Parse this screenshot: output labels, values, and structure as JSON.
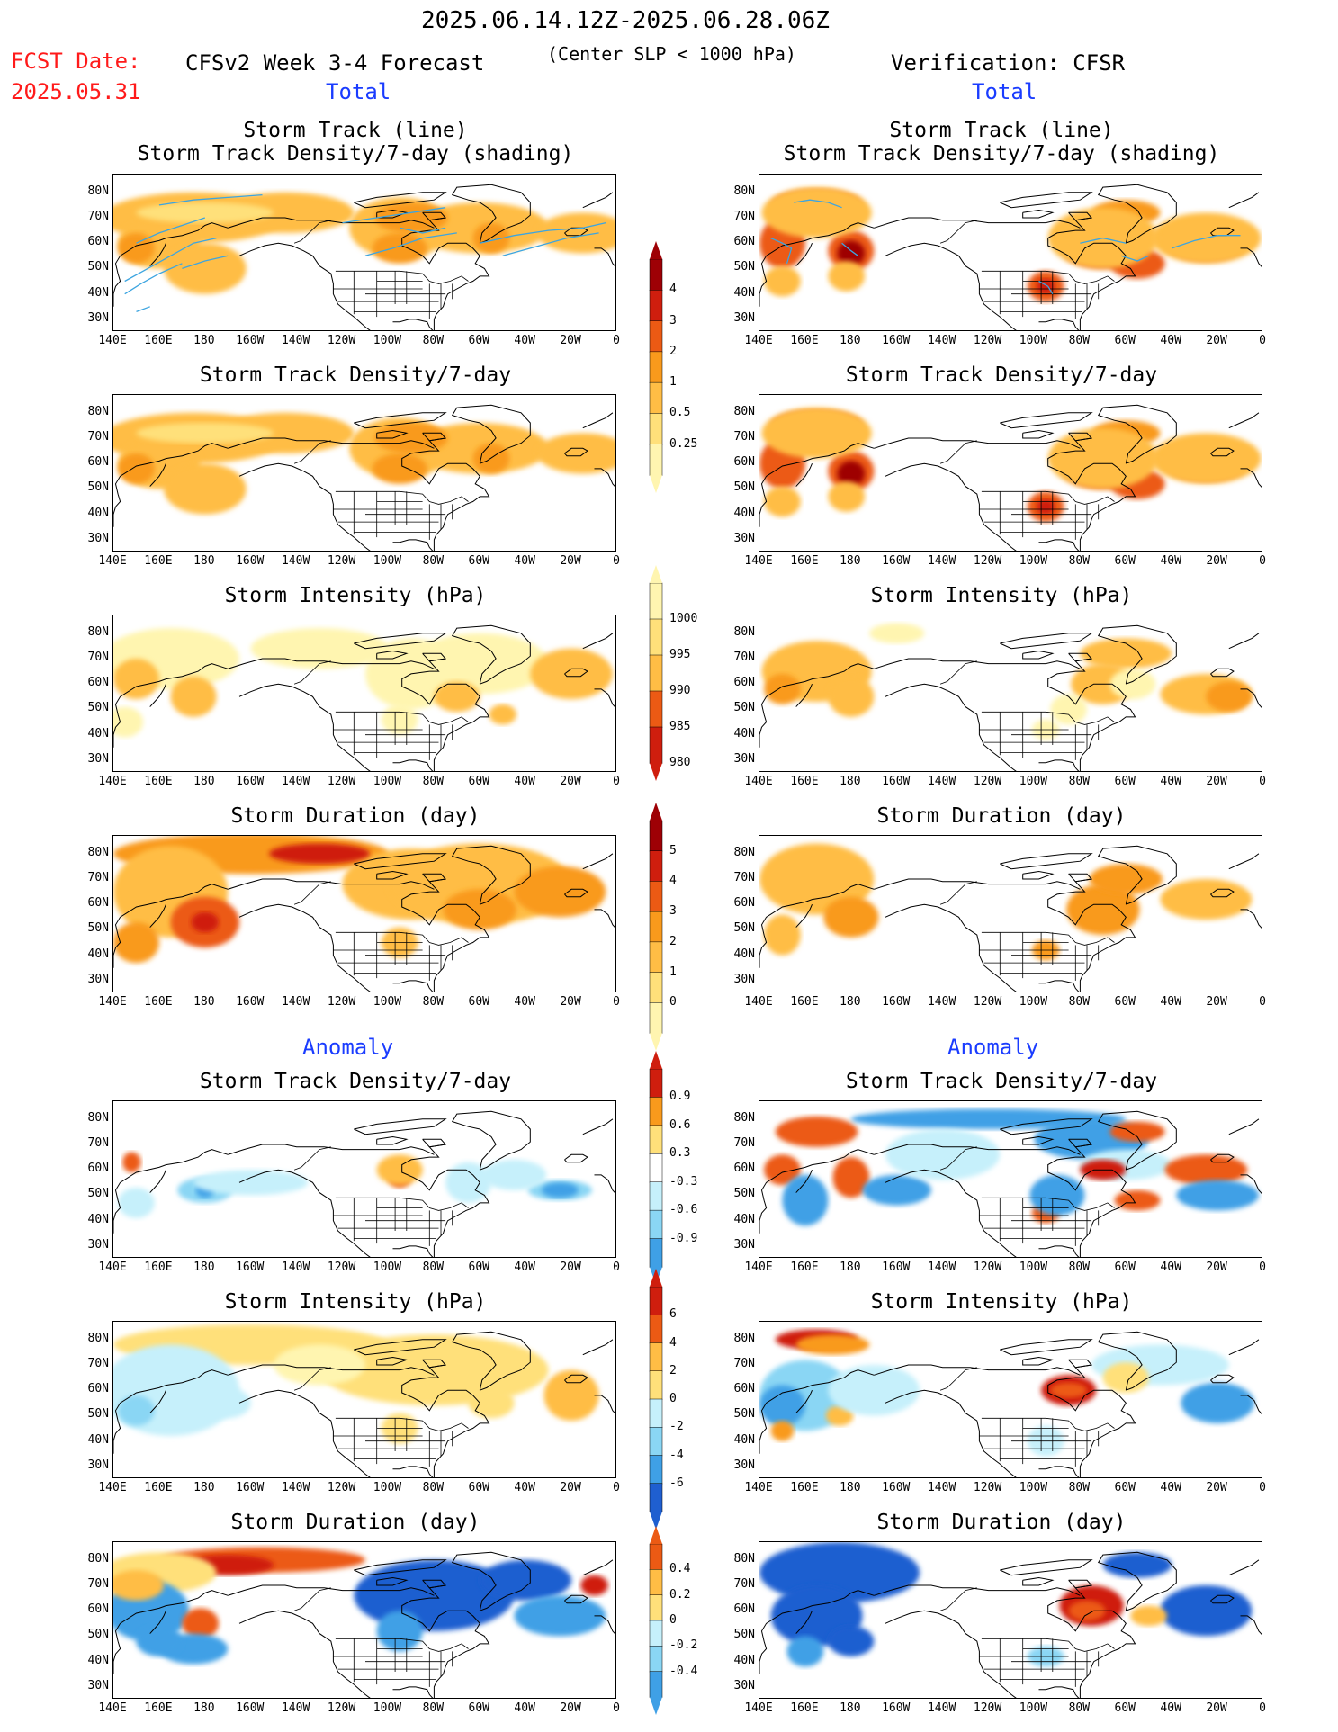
{
  "header": {
    "date_range": "2025.06.14.12Z-2025.06.28.06Z",
    "fcst_label": "FCST Date:",
    "fcst_date": "2025.05.31",
    "model": "CFSv2 Week 3-4 Forecast",
    "criterion": "(Center SLP < 1000 hPa)",
    "verification": "Verification: CFSR"
  },
  "sections": {
    "total": "Total",
    "anomaly": "Anomaly"
  },
  "titles": {
    "track_line": "Storm Track (line)",
    "track_density_shading": "Storm Track Density/7-day (shading)",
    "density": "Storm Track Density/7-day",
    "intensity": "Storm Intensity (hPa)",
    "duration": "Storm Duration (day)"
  },
  "axes": {
    "lat": [
      "80N",
      "70N",
      "60N",
      "50N",
      "40N",
      "30N"
    ],
    "lon": [
      "140E",
      "160E",
      "180",
      "160W",
      "140W",
      "120W",
      "100W",
      "80W",
      "60W",
      "40W",
      "20W",
      "0"
    ]
  },
  "colorbars": {
    "density": [
      "4",
      "3",
      "2",
      "1",
      "0.5",
      "0.25"
    ],
    "intensity": [
      "1000",
      "995",
      "990",
      "985",
      "980"
    ],
    "duration": [
      "5",
      "4",
      "3",
      "2",
      "1",
      "0"
    ],
    "density_anom": [
      "0.9",
      "0.6",
      "0.3",
      "-0.3",
      "-0.6",
      "-0.9"
    ],
    "intensity_anom": [
      "6",
      "4",
      "2",
      "0",
      "-2",
      "-4",
      "-6"
    ],
    "duration_anom": [
      "0.4",
      "0.2",
      "0",
      "-0.2",
      "-0.4"
    ]
  },
  "colors": {
    "c1": "#fff5b0",
    "c2": "#ffe07a",
    "c3": "#ffbd45",
    "c4": "#f99a1c",
    "c5": "#ec5a14",
    "c6": "#cf1e0e",
    "c7": "#9e0005",
    "b1": "#c6f0fb",
    "b2": "#8ad6f4",
    "b3": "#3fa0e6",
    "b4": "#1f5fd0",
    "track": "#3da5e0"
  }
}
